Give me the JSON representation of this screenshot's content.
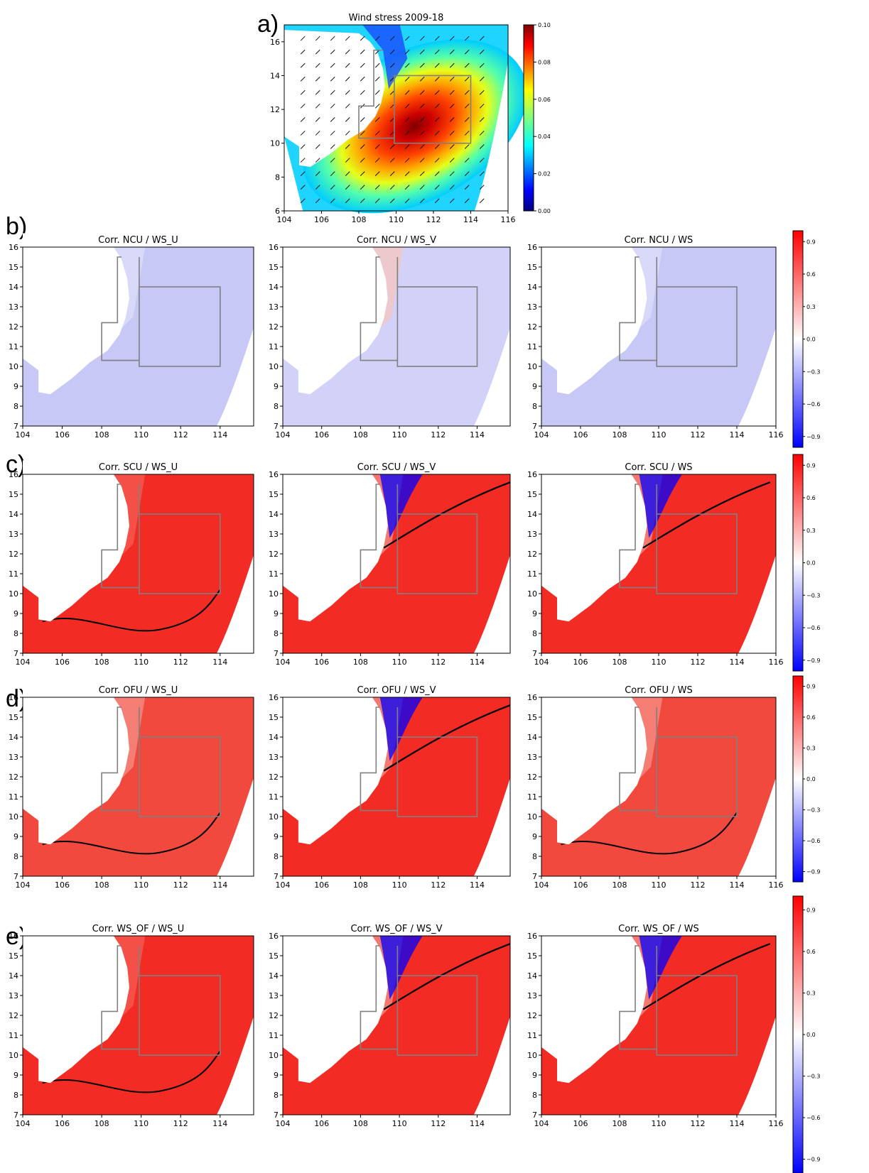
{
  "panel_labels": [
    "a)",
    "b)",
    "c)",
    "d)",
    "e)"
  ],
  "chart_data": [
    {
      "id": "a",
      "type": "heatmap",
      "title": "Wind stress 2009-18",
      "xlim": [
        104,
        116
      ],
      "ylim": [
        6,
        17
      ],
      "xticks": [
        "104",
        "106",
        "108",
        "110",
        "112",
        "114",
        "116"
      ],
      "yticks": [
        "6",
        "8",
        "10",
        "12",
        "14",
        "16"
      ],
      "colorbar": {
        "range": [
          0.0,
          0.1
        ],
        "ticks": [
          "0.00",
          "0.02",
          "0.04",
          "0.06",
          "0.08",
          "0.10"
        ],
        "colormap": "jet"
      },
      "max_center": [
        111,
        11
      ],
      "max_value": 0.1,
      "vectors": "wind stress arrows pointing north-east"
    },
    {
      "id": "b1",
      "type": "heatmap",
      "title": "Corr. NCU / WS_U",
      "pattern": "weak-negative",
      "xticks": [
        "104",
        "106",
        "108",
        "110",
        "112",
        "114"
      ],
      "yticks": [
        "7",
        "8",
        "9",
        "10",
        "11",
        "12",
        "13",
        "14",
        "15",
        "16"
      ]
    },
    {
      "id": "b2",
      "type": "heatmap",
      "title": "Corr. NCU / WS_V",
      "pattern": "weak-mixed",
      "xticks": [
        "104",
        "106",
        "108",
        "110",
        "112",
        "114"
      ],
      "yticks": [
        "7",
        "8",
        "9",
        "10",
        "11",
        "12",
        "13",
        "14",
        "15",
        "16"
      ]
    },
    {
      "id": "b3",
      "type": "heatmap",
      "title": "Corr. NCU / WS",
      "pattern": "weak-negative",
      "xticks": [
        "104",
        "106",
        "108",
        "110",
        "112",
        "114",
        "116"
      ],
      "yticks": [
        "7",
        "8",
        "9",
        "10",
        "11",
        "12",
        "13",
        "14",
        "15",
        "16"
      ]
    },
    {
      "id": "c1",
      "type": "heatmap",
      "title": "Corr. SCU / WS_U",
      "pattern": "strong-positive",
      "xticks": [
        "104",
        "106",
        "108",
        "110",
        "112",
        "114"
      ],
      "yticks": [
        "7",
        "8",
        "9",
        "10",
        "11",
        "12",
        "13",
        "14",
        "15",
        "16"
      ]
    },
    {
      "id": "c2",
      "type": "heatmap",
      "title": "Corr. SCU / WS_V",
      "pattern": "positive-with-negative-north",
      "xticks": [
        "104",
        "106",
        "108",
        "110",
        "112",
        "114"
      ],
      "yticks": [
        "7",
        "8",
        "9",
        "10",
        "11",
        "12",
        "13",
        "14",
        "15",
        "16"
      ]
    },
    {
      "id": "c3",
      "type": "heatmap",
      "title": "Corr. SCU / WS",
      "pattern": "positive-with-negative-north",
      "xticks": [
        "104",
        "106",
        "108",
        "110",
        "112",
        "114",
        "116"
      ],
      "yticks": [
        "7",
        "8",
        "9",
        "10",
        "11",
        "12",
        "13",
        "14",
        "15",
        "16"
      ]
    },
    {
      "id": "d1",
      "type": "heatmap",
      "title": "Corr. OFU / WS_U",
      "pattern": "moderate-positive",
      "xticks": [
        "104",
        "106",
        "108",
        "110",
        "112",
        "114"
      ],
      "yticks": [
        "7",
        "8",
        "9",
        "10",
        "11",
        "12",
        "13",
        "14",
        "15",
        "16"
      ]
    },
    {
      "id": "d2",
      "type": "heatmap",
      "title": "Corr. OFU / WS_V",
      "pattern": "positive-with-negative-north",
      "xticks": [
        "104",
        "106",
        "108",
        "110",
        "112",
        "114"
      ],
      "yticks": [
        "7",
        "8",
        "9",
        "10",
        "11",
        "12",
        "13",
        "14",
        "15",
        "16"
      ]
    },
    {
      "id": "d3",
      "type": "heatmap",
      "title": "Corr. OFU / WS",
      "pattern": "moderate-positive",
      "xticks": [
        "104",
        "106",
        "108",
        "110",
        "112",
        "114",
        "116"
      ],
      "yticks": [
        "7",
        "8",
        "9",
        "10",
        "11",
        "12",
        "13",
        "14",
        "15",
        "16"
      ]
    },
    {
      "id": "e1",
      "type": "heatmap",
      "title": "Corr. WS_OF / WS_U",
      "pattern": "strong-positive",
      "xticks": [
        "104",
        "106",
        "108",
        "110",
        "112",
        "114"
      ],
      "yticks": [
        "7",
        "8",
        "9",
        "10",
        "11",
        "12",
        "13",
        "14",
        "15",
        "16"
      ]
    },
    {
      "id": "e2",
      "type": "heatmap",
      "title": "Corr. WS_OF / WS_V",
      "pattern": "positive-with-negative-north",
      "xticks": [
        "104",
        "106",
        "108",
        "110",
        "112",
        "114"
      ],
      "yticks": [
        "7",
        "8",
        "9",
        "10",
        "11",
        "12",
        "13",
        "14",
        "15",
        "16"
      ]
    },
    {
      "id": "e3",
      "type": "heatmap",
      "title": "Corr. WS_OF / WS",
      "pattern": "positive-with-negative-north",
      "xticks": [
        "104",
        "106",
        "108",
        "110",
        "112",
        "114",
        "116"
      ],
      "yticks": [
        "7",
        "8",
        "9",
        "10",
        "11",
        "12",
        "13",
        "14",
        "15",
        "16"
      ]
    }
  ],
  "corr_colorbar": {
    "range": [
      -1,
      1
    ],
    "colormap": "bwr",
    "ticks": [
      "0.9",
      "0.6",
      "0.3",
      "0.0",
      "−0.3",
      "−0.6",
      "−0.9"
    ],
    "colors": {
      "neg": "#0000ff",
      "pos": "#ff0000",
      "mid": "#ffffff"
    }
  },
  "box_color": "#808080"
}
